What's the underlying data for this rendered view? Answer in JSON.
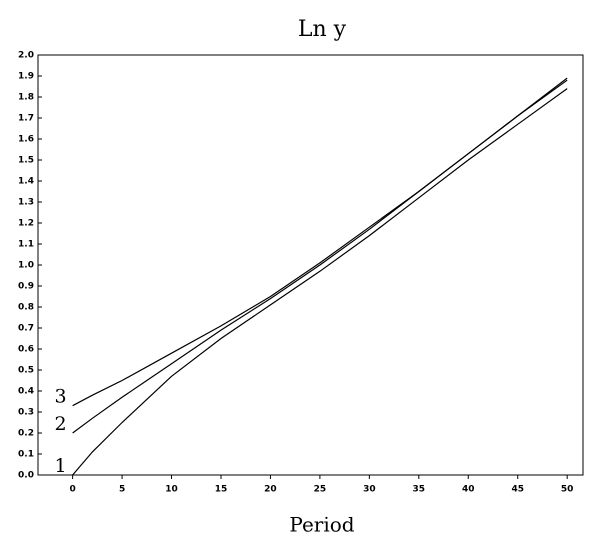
{
  "chart_data": {
    "type": "line",
    "title": "Ln y",
    "xlabel": "Period",
    "x": [
      0,
      2,
      5,
      10,
      15,
      20,
      25,
      30,
      35,
      40,
      45,
      50
    ],
    "series": [
      {
        "name": "1",
        "color": "#000000",
        "values": [
          0,
          0.11,
          0.25,
          0.47,
          0.65,
          0.81,
          0.97,
          1.14,
          1.32,
          1.5,
          1.67,
          1.84
        ]
      },
      {
        "name": "2",
        "color": "#000000",
        "values": [
          0.2,
          0.27,
          0.37,
          0.53,
          0.69,
          0.84,
          1.0,
          1.17,
          1.35,
          1.53,
          1.71,
          1.89
        ]
      },
      {
        "name": "3",
        "color": "#000000",
        "values": [
          0.33,
          0.38,
          0.45,
          0.58,
          0.71,
          0.85,
          1.01,
          1.18,
          1.35,
          1.53,
          1.71,
          1.88
        ]
      }
    ],
    "xlim": [
      -3.5,
      51.6
    ],
    "xticks": [
      0,
      5,
      10,
      15,
      20,
      25,
      30,
      35,
      40,
      45,
      50
    ],
    "ylim": [
      0,
      2.0
    ],
    "yticks": [
      {
        "value": 0,
        "label": "0.0"
      },
      0.1,
      0.2,
      0.3,
      0.4,
      0.5,
      0.6,
      0.7,
      0.8,
      0.9,
      {
        "value": 1.0,
        "label": "1.0"
      },
      1.1,
      1.2,
      1.3,
      1.4,
      1.5,
      1.6,
      1.7,
      1.8,
      1.9,
      {
        "value": 2.0,
        "label": "2.0"
      }
    ],
    "grid": false
  }
}
